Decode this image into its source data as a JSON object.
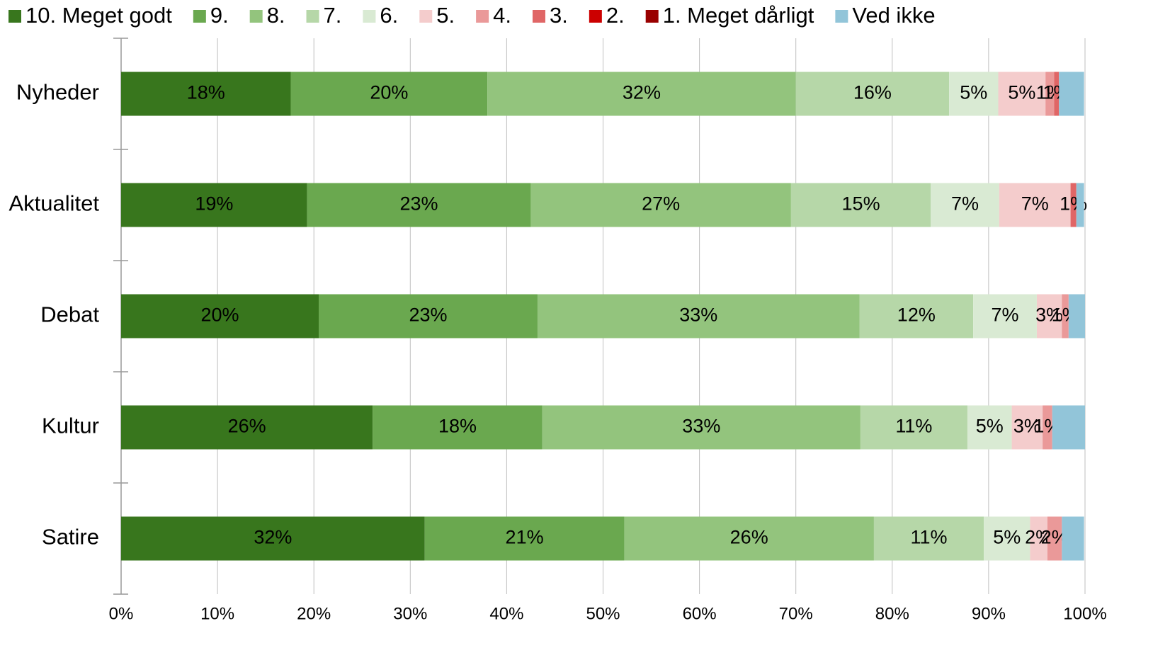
{
  "chart_data": {
    "type": "stacked-barh",
    "categories": [
      "Nyheder",
      "Aktualitet",
      "Debat",
      "Kultur",
      "Satire"
    ],
    "series": [
      {
        "name": "10. Meget godt",
        "color": "#38761d",
        "values": [
          17.6,
          19.3,
          20.5,
          26.1,
          31.5
        ],
        "value_labels": [
          "18%",
          "19%",
          "20%",
          "26%",
          "32%"
        ]
      },
      {
        "name": "9.",
        "color": "#6aa84f",
        "values": [
          20.4,
          23.2,
          22.7,
          17.6,
          20.7
        ],
        "value_labels": [
          "20%",
          "23%",
          "23%",
          "18%",
          "21%"
        ]
      },
      {
        "name": "8.",
        "color": "#93c47d",
        "values": [
          32.0,
          27.0,
          33.4,
          33.0,
          25.9
        ],
        "value_labels": [
          "32%",
          "27%",
          "33%",
          "33%",
          "26%"
        ]
      },
      {
        "name": "7.",
        "color": "#b6d7a8",
        "values": [
          15.9,
          14.5,
          11.8,
          11.1,
          11.4
        ],
        "value_labels": [
          "16%",
          "15%",
          "12%",
          "11%",
          "11%"
        ]
      },
      {
        "name": "6.",
        "color": "#d9ead3",
        "values": [
          5.1,
          7.1,
          6.6,
          4.6,
          4.8
        ],
        "value_labels": [
          "5%",
          "7%",
          "7%",
          "5%",
          "5%"
        ]
      },
      {
        "name": "5.",
        "color": "#f4cccc",
        "values": [
          4.9,
          7.4,
          2.6,
          3.2,
          1.8
        ],
        "value_labels": [
          "5%",
          "7%",
          "3%",
          "3%",
          "2%"
        ]
      },
      {
        "name": "4.",
        "color": "#ea9999",
        "values": [
          0.9,
          0,
          0.7,
          1.0,
          1.5
        ],
        "value_labels": [
          "1%",
          null,
          "1%",
          "1%",
          "2%"
        ]
      },
      {
        "name": "3.",
        "color": "#e06666",
        "values": [
          0.5,
          0.6,
          0,
          0,
          0
        ],
        "value_labels": [
          "1%",
          "1%",
          null,
          null,
          null
        ]
      },
      {
        "name": "2.",
        "color": "#cc0000",
        "values": [
          0,
          0,
          0,
          0,
          0
        ]
      },
      {
        "name": "1. Meget dårligt",
        "color": "#990000",
        "values": [
          0,
          0,
          0,
          0,
          0
        ]
      },
      {
        "name": "Ved ikke",
        "color": "#92c5d9",
        "values": [
          2.6,
          0.8,
          1.7,
          3.4,
          2.3
        ]
      }
    ],
    "xlim": [
      0,
      100
    ],
    "xticks": [
      {
        "value": 0,
        "label": "0%"
      },
      {
        "value": 10,
        "label": "10%"
      },
      {
        "value": 20,
        "label": "20%"
      },
      {
        "value": 30,
        "label": "30%"
      },
      {
        "value": 40,
        "label": "40%"
      },
      {
        "value": 50,
        "label": "50%"
      },
      {
        "value": 60,
        "label": "60%"
      },
      {
        "value": 70,
        "label": "70%"
      },
      {
        "value": 80,
        "label": "80%"
      },
      {
        "value": 90,
        "label": "90%"
      },
      {
        "value": 100,
        "label": "100%"
      }
    ],
    "grid": true,
    "legend": "top"
  }
}
